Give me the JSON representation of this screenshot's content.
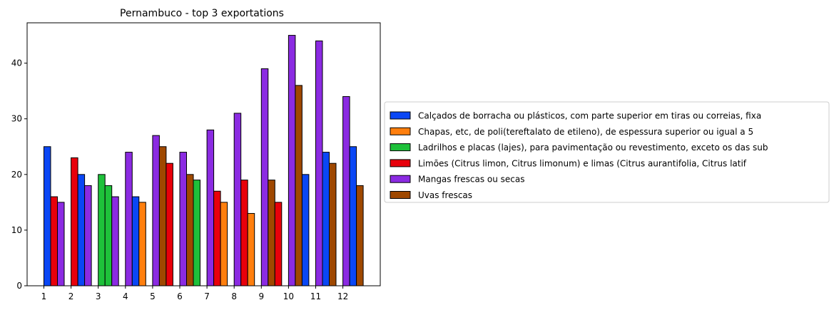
{
  "chart_data": {
    "type": "bar",
    "title": "Pernambuco - top 3 exportations",
    "xlabel": "",
    "ylabel": "",
    "ylim": [
      0,
      47.25
    ],
    "y_ticks": [
      0,
      10,
      20,
      30,
      40
    ],
    "x_tick_labels": [
      "1",
      "2",
      "3",
      "4",
      "5",
      "6",
      "7",
      "8",
      "9",
      "10",
      "11",
      "12"
    ],
    "grid": false,
    "legend_position": "right",
    "series": [
      {
        "name": "Calçados de borracha ou plásticos, com parte superior em tiras ou correias, fixa",
        "color": "#0a47f5"
      },
      {
        "name": "Chapas, etc, de poli(tereftalato de etileno), de espessura superior ou igual a 5",
        "color": "#ff7f0e"
      },
      {
        "name": "Ladrilhos e placas (lajes), para pavimentação ou revestimento, exceto os das sub",
        "color": "#1ec13a"
      },
      {
        "name": "Limões (Citrus limon, Citrus limonum) e limas (Citrus aurantifolia, Citrus latif",
        "color": "#e8000b"
      },
      {
        "name": "Mangas frescas ou secas",
        "color": "#8b2be2"
      },
      {
        "name": "Uvas frescas",
        "color": "#9f4800"
      }
    ],
    "groups": [
      {
        "month": "1",
        "bars": [
          {
            "series": 0,
            "value": 25
          },
          {
            "series": 3,
            "value": 16
          },
          {
            "series": 4,
            "value": 15
          }
        ]
      },
      {
        "month": "2",
        "bars": [
          {
            "series": 3,
            "value": 23
          },
          {
            "series": 0,
            "value": 20
          },
          {
            "series": 4,
            "value": 18
          }
        ]
      },
      {
        "month": "3",
        "bars": [
          {
            "series": 2,
            "value": 20
          },
          {
            "series": 2,
            "value": 18
          },
          {
            "series": 4,
            "value": 16
          }
        ]
      },
      {
        "month": "4",
        "bars": [
          {
            "series": 4,
            "value": 24
          },
          {
            "series": 0,
            "value": 16
          },
          {
            "series": 1,
            "value": 15
          }
        ]
      },
      {
        "month": "5",
        "bars": [
          {
            "series": 4,
            "value": 27
          },
          {
            "series": 5,
            "value": 25
          },
          {
            "series": 3,
            "value": 22
          }
        ]
      },
      {
        "month": "6",
        "bars": [
          {
            "series": 4,
            "value": 24
          },
          {
            "series": 5,
            "value": 20
          },
          {
            "series": 2,
            "value": 19
          }
        ]
      },
      {
        "month": "7",
        "bars": [
          {
            "series": 4,
            "value": 28
          },
          {
            "series": 3,
            "value": 17
          },
          {
            "series": 1,
            "value": 15
          }
        ]
      },
      {
        "month": "8",
        "bars": [
          {
            "series": 4,
            "value": 31
          },
          {
            "series": 3,
            "value": 19
          },
          {
            "series": 1,
            "value": 13
          }
        ]
      },
      {
        "month": "9",
        "bars": [
          {
            "series": 4,
            "value": 39
          },
          {
            "series": 5,
            "value": 19
          },
          {
            "series": 3,
            "value": 15
          }
        ]
      },
      {
        "month": "10",
        "bars": [
          {
            "series": 4,
            "value": 45
          },
          {
            "series": 5,
            "value": 36
          },
          {
            "series": 0,
            "value": 20
          }
        ]
      },
      {
        "month": "11",
        "bars": [
          {
            "series": 4,
            "value": 44
          },
          {
            "series": 0,
            "value": 24
          },
          {
            "series": 5,
            "value": 22
          }
        ]
      },
      {
        "month": "12",
        "bars": [
          {
            "series": 4,
            "value": 34
          },
          {
            "series": 0,
            "value": 25
          },
          {
            "series": 5,
            "value": 18
          }
        ]
      }
    ]
  }
}
